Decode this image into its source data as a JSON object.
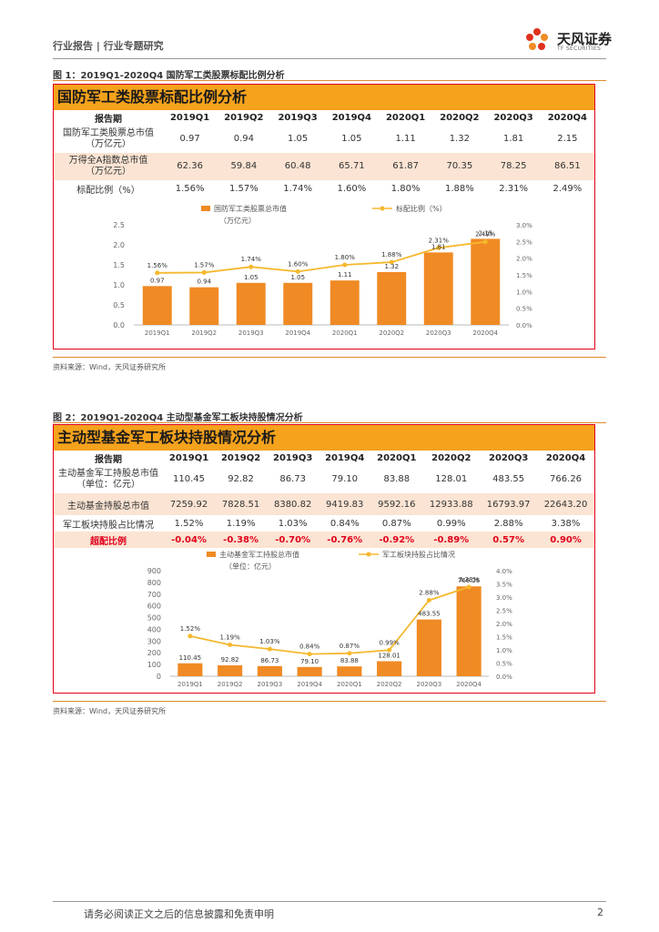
{
  "header": {
    "text": "行业报告 | 行业专题研究",
    "logo_text": "天风证券",
    "logo_sub": "TF SECURITIES"
  },
  "figure1": {
    "caption": "图 1：2019Q1-2020Q4 国防军工类股票标配比例分析",
    "title": "国防军工类股票标配比例分析",
    "table": {
      "header": [
        "报告期",
        "2019Q1",
        "2019Q2",
        "2019Q3",
        "2019Q4",
        "2020Q1",
        "2020Q2",
        "2020Q3",
        "2020Q4"
      ],
      "rows": [
        {
          "label_lines": [
            "国防军工类股票总市值",
            "（万亿元）"
          ],
          "values": [
            "0.97",
            "0.94",
            "1.05",
            "1.05",
            "1.11",
            "1.32",
            "1.81",
            "2.15"
          ]
        },
        {
          "label_lines": [
            "万得全A指数总市值",
            "（万亿元）"
          ],
          "values": [
            "62.36",
            "59.84",
            "60.48",
            "65.71",
            "61.87",
            "70.35",
            "78.25",
            "86.51"
          ]
        },
        {
          "label_lines": [
            "标配比例（%）"
          ],
          "values": [
            "1.56%",
            "1.57%",
            "1.74%",
            "1.60%",
            "1.80%",
            "1.88%",
            "2.31%",
            "2.49%"
          ]
        }
      ]
    },
    "source": "资料来源：Wind，天风证券研究所"
  },
  "figure2": {
    "caption": "图 2：2019Q1-2020Q4 主动型基金军工板块持股情况分析",
    "title": "主动型基金军工板块持股情况分析",
    "table": {
      "header": [
        "报告期",
        "2019Q1",
        "2019Q2",
        "2019Q3",
        "2019Q4",
        "2020Q1",
        "2020Q2",
        "2020Q3",
        "2020Q4"
      ],
      "rows": [
        {
          "label_lines": [
            "主动基金军工持股总市值",
            "（单位：亿元）"
          ],
          "values": [
            "110.45",
            "92.82",
            "86.73",
            "79.10",
            "83.88",
            "128.01",
            "483.55",
            "766.26"
          ]
        },
        {
          "label_lines": [
            "主动基金持股总市值"
          ],
          "values": [
            "7259.92",
            "7828.51",
            "8380.82",
            "9419.83",
            "9592.16",
            "12933.88",
            "16793.97",
            "22643.20"
          ]
        },
        {
          "label_lines": [
            "军工板块持股占比情况"
          ],
          "values": [
            "1.52%",
            "1.19%",
            "1.03%",
            "0.84%",
            "0.87%",
            "0.99%",
            "2.88%",
            "3.38%"
          ]
        },
        {
          "label_lines": [
            "超配比例"
          ],
          "values": [
            "-0.04%",
            "-0.38%",
            "-0.70%",
            "-0.76%",
            "-0.92%",
            "-0.89%",
            "0.57%",
            "0.90%"
          ]
        }
      ]
    },
    "source": "资料来源：Wind，天风证券研究所"
  },
  "chart_data": [
    {
      "type": "bar",
      "categories": [
        "2019Q1",
        "2019Q2",
        "2019Q3",
        "2019Q4",
        "2020Q1",
        "2020Q2",
        "2020Q3",
        "2020Q4"
      ],
      "series": [
        {
          "name": "国防军工类股票总市值（万亿元）",
          "type": "bar",
          "axis": "left",
          "values": [
            0.97,
            0.94,
            1.05,
            1.05,
            1.11,
            1.32,
            1.81,
            2.15
          ],
          "labels": [
            "0.97",
            "0.94",
            "1.05",
            "1.05",
            "1.11",
            "1.32",
            "1.81",
            "2.15"
          ]
        },
        {
          "name": "标配比例（%）",
          "type": "line",
          "axis": "right",
          "values": [
            1.56,
            1.57,
            1.74,
            1.6,
            1.8,
            1.88,
            2.31,
            2.49
          ],
          "labels": [
            "1.56%",
            "1.57%",
            "1.74%",
            "1.60%",
            "1.80%",
            "1.88%",
            "2.31%",
            "2.49%"
          ]
        }
      ],
      "legend": {
        "bar_lines": [
          "国防军工类股票总市值",
          "（万亿元）"
        ],
        "line": "标配比例（%）",
        "placement": "top"
      },
      "ylim": [
        0,
        2.5
      ],
      "yticks": [
        "0.0",
        "0.5",
        "1.0",
        "1.5",
        "2.0",
        "2.5"
      ],
      "y2lim": [
        0,
        3.0
      ],
      "y2ticks": [
        "0.0%",
        "0.5%",
        "1.0%",
        "1.5%",
        "2.0%",
        "2.5%",
        "3.0%"
      ],
      "grid": false,
      "colors": {
        "bar": "#f08a24",
        "line": "#f5b82e"
      }
    },
    {
      "type": "bar",
      "categories": [
        "2019Q1",
        "2019Q2",
        "2019Q3",
        "2019Q4",
        "2020Q1",
        "2020Q2",
        "2020Q3",
        "2020Q4"
      ],
      "series": [
        {
          "name": "主动基金军工持股总市值（单位：亿元）",
          "type": "bar",
          "axis": "left",
          "values": [
            110.45,
            92.82,
            86.73,
            79.1,
            83.88,
            128.01,
            483.55,
            766.26
          ],
          "labels": [
            "110.45",
            "92.82",
            "86.73",
            "79.10",
            "83.88",
            "128.01",
            "483.55",
            "766.26"
          ]
        },
        {
          "name": "军工板块持股占比情况",
          "type": "line",
          "axis": "right",
          "values": [
            1.52,
            1.19,
            1.03,
            0.84,
            0.87,
            0.99,
            2.88,
            3.38
          ],
          "labels": [
            "1.52%",
            "1.19%",
            "1.03%",
            "0.84%",
            "0.87%",
            "0.99%",
            "2.88%",
            "3.38%"
          ]
        }
      ],
      "legend": {
        "bar_lines": [
          "主动基金军工持股总市值",
          "（单位：亿元）"
        ],
        "line": "军工板块持股占比情况",
        "placement": "top"
      },
      "ylim": [
        0,
        900
      ],
      "yticks": [
        "0",
        "100",
        "200",
        "300",
        "400",
        "500",
        "600",
        "700",
        "800",
        "900"
      ],
      "y2lim": [
        0,
        4.0
      ],
      "y2ticks": [
        "0.0%",
        "0.5%",
        "1.0%",
        "1.5%",
        "2.0%",
        "2.5%",
        "3.0%",
        "3.5%",
        "4.0%"
      ],
      "grid": false,
      "colors": {
        "bar": "#f08a24",
        "line": "#f5b82e"
      }
    }
  ],
  "footer": {
    "disclaimer": "请务必阅读正文之后的信息披露和免责申明",
    "page": "2"
  }
}
